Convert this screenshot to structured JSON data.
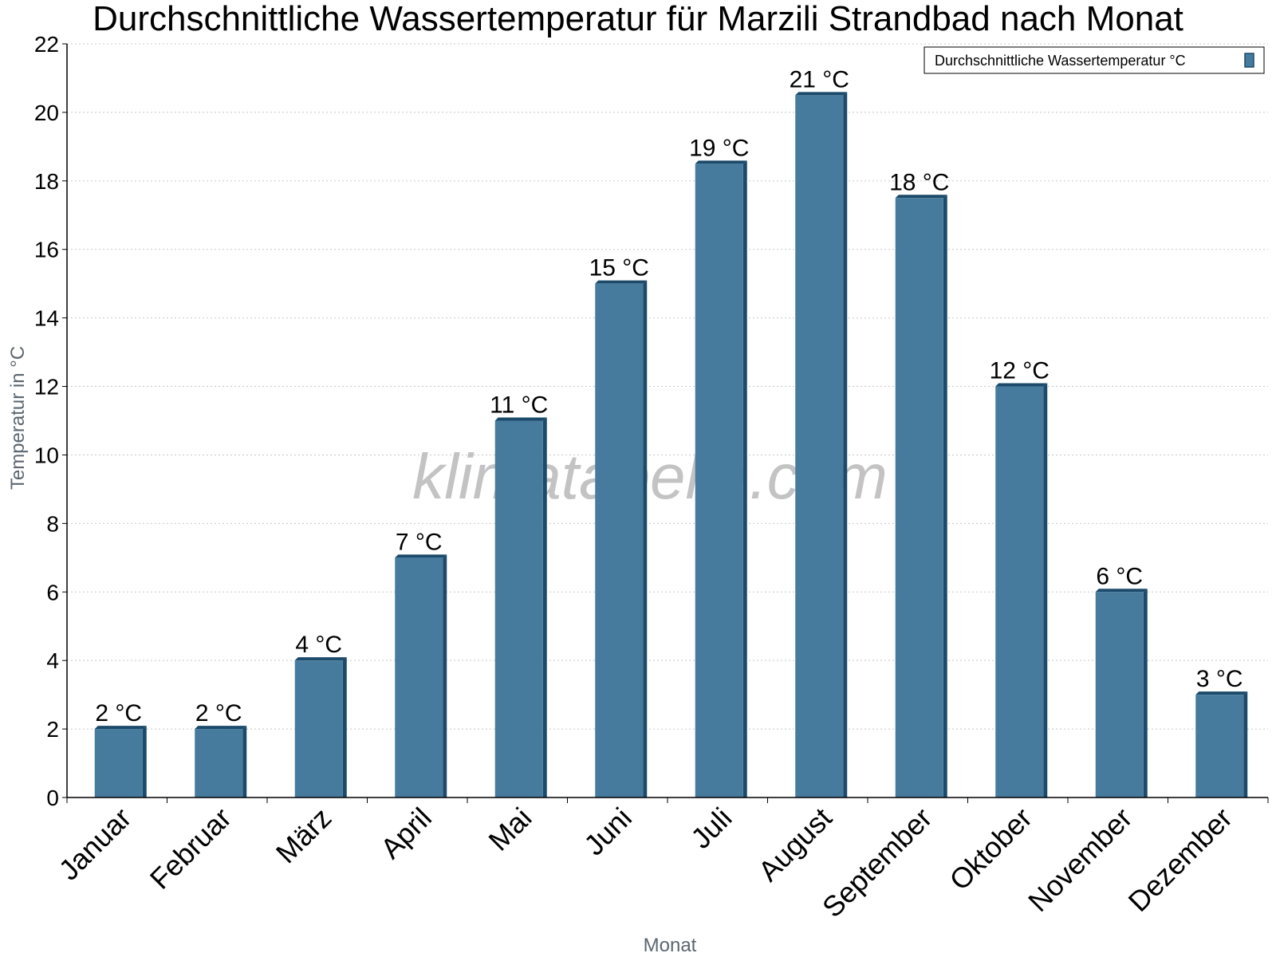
{
  "chart_data": {
    "type": "bar",
    "title": "Durchschnittliche Wassertemperatur für Marzili Strandbad nach Monat",
    "xlabel": "Monat",
    "ylabel": "Temperatur in °C",
    "ylim": [
      0,
      22
    ],
    "yticks": [
      0,
      2,
      4,
      6,
      8,
      10,
      12,
      14,
      16,
      18,
      20,
      22
    ],
    "grid": true,
    "legend_position": "top-right",
    "categories": [
      "Januar",
      "Februar",
      "März",
      "April",
      "Mai",
      "Juni",
      "Juli",
      "August",
      "September",
      "Oktober",
      "November",
      "Dezember"
    ],
    "series": [
      {
        "name": "Durchschnittliche Wassertemperatur °C",
        "color": "#467b9e",
        "values": [
          2,
          2,
          4,
          7,
          11,
          15,
          18.5,
          20.5,
          17.5,
          12,
          6,
          3
        ],
        "labels": [
          "2 °C",
          "2 °C",
          "4 °C",
          "7 °C",
          "11 °C",
          "15 °C",
          "19 °C",
          "21 °C",
          "18 °C",
          "12 °C",
          "6 °C",
          "3 °C"
        ]
      }
    ],
    "watermark": "klimatabelle.com"
  }
}
